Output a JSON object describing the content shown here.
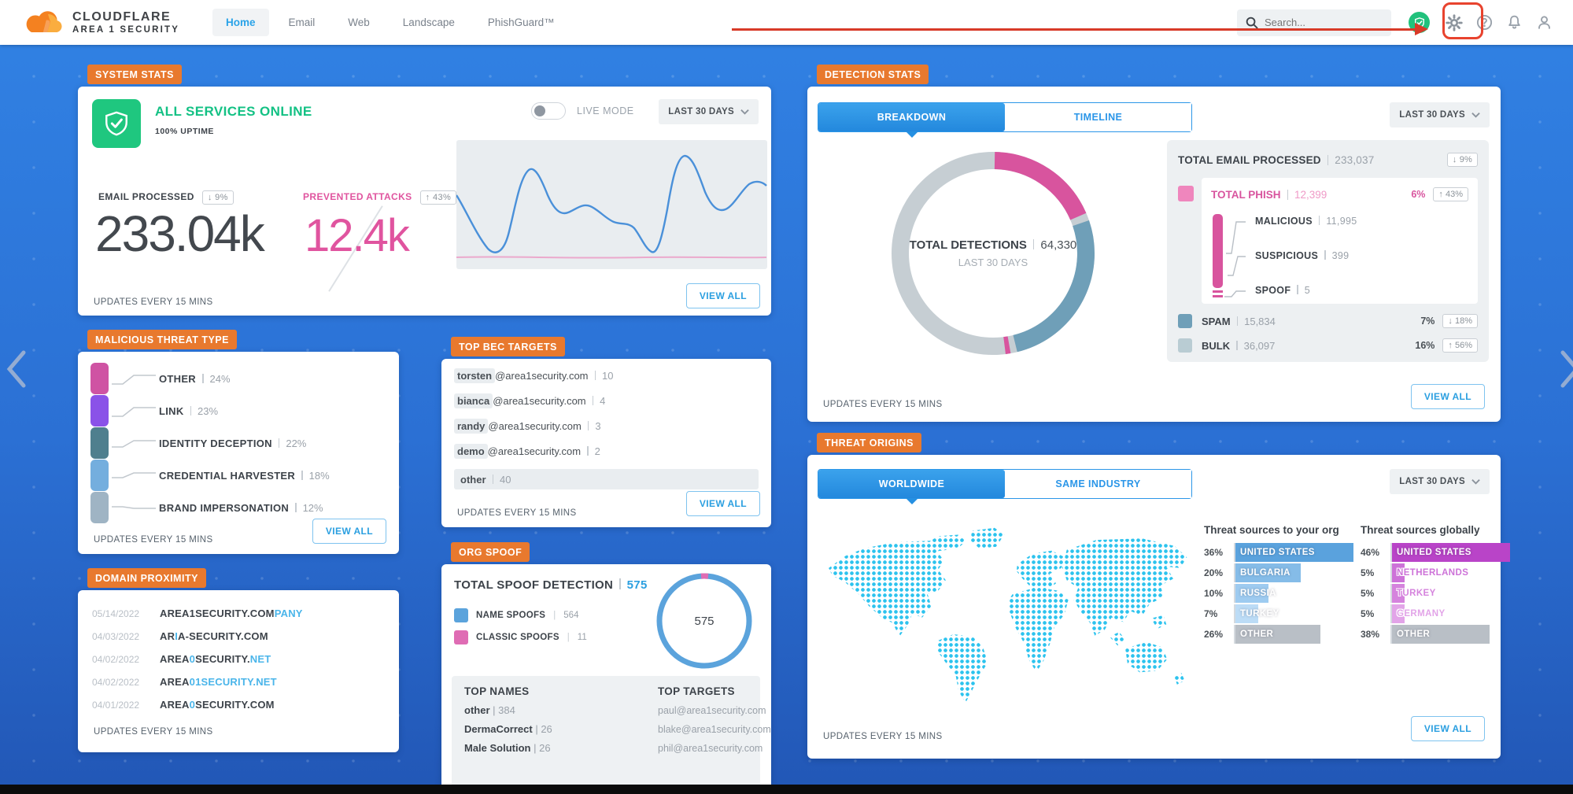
{
  "topbar": {
    "brand": {
      "name": "CLOUDFLARE",
      "sub": "AREA 1 SECURITY"
    },
    "nav": [
      {
        "label": "Home"
      },
      {
        "label": "Email"
      },
      {
        "label": "Web"
      },
      {
        "label": "Landscape"
      },
      {
        "label": "PhishGuard™"
      }
    ],
    "search_placeholder": "Search..."
  },
  "colors": {
    "accent_blue": "#2b9fe0",
    "badge_orange": "#e8792e",
    "green": "#1fc77f",
    "pink": "#e0549f",
    "page_blue": "#2b70d4"
  },
  "system_stats": {
    "badge": "SYSTEM STATS",
    "status": "ALL SERVICES ONLINE",
    "uptime": "100% UPTIME",
    "live_mode_label": "LIVE MODE",
    "range": "LAST 30 DAYS",
    "email_processed": {
      "label": "EMAIL PROCESSED",
      "delta": "↓ 9%",
      "value": "233.04k"
    },
    "prevented_attacks": {
      "label": "PREVENTED ATTACKS",
      "delta": "↑ 43%",
      "value": "12.4k"
    },
    "updates": "UPDATES EVERY 15 MINS",
    "view_all": "VIEW ALL"
  },
  "threat_types": {
    "badge": "MALICIOUS THREAT TYPE",
    "items": [
      {
        "label": "OTHER",
        "pct": "24%",
        "color": "#cf53a3"
      },
      {
        "label": "LINK",
        "pct": "23%",
        "color": "#8a52e8"
      },
      {
        "label": "IDENTITY DECEPTION",
        "pct": "22%",
        "color": "#4f7f8e"
      },
      {
        "label": "CREDENTIAL HARVESTER",
        "pct": "18%",
        "color": "#74aede"
      },
      {
        "label": "BRAND IMPERSONATION",
        "pct": "12%",
        "color": "#9fb4c4"
      }
    ],
    "updates": "UPDATES EVERY 15 MINS",
    "view_all": "VIEW ALL"
  },
  "domain_proximity": {
    "badge": "DOMAIN PROXIMITY",
    "rows": [
      {
        "date": "05/14/2022",
        "p1": "AREA1SECURITY.COM",
        "h1": "PANY",
        "p2": "",
        "h2": ""
      },
      {
        "date": "04/03/2022",
        "p1": "AR",
        "h1": "I",
        "p2": "A-SECURITY.COM",
        "h2": ""
      },
      {
        "date": "04/02/2022",
        "p1": "AREA",
        "h1": "0",
        "p2": "SECURITY.",
        "h2": "NET"
      },
      {
        "date": "04/02/2022",
        "p1": "AREA",
        "h1": "01SECURITY.NET",
        "p2": "",
        "h2": ""
      },
      {
        "date": "04/01/2022",
        "p1": "AREA",
        "h1": "0",
        "p2": "SECURITY.COM",
        "h2": ""
      }
    ],
    "updates": "UPDATES EVERY 15 MINS"
  },
  "bec_targets": {
    "badge": "TOP BEC TARGETS",
    "rows": [
      {
        "user": "torsten",
        "rest": "@area1security.com",
        "count": "10"
      },
      {
        "user": "bianca",
        "rest": "@area1security.com",
        "count": "4"
      },
      {
        "user": "randy",
        "rest": "@area1security.com",
        "count": "3"
      },
      {
        "user": "demo",
        "rest": "@area1security.com",
        "count": "2"
      }
    ],
    "other_label": "other",
    "other_count": "40",
    "updates": "UPDATES EVERY 15 MINS",
    "view_all": "VIEW ALL"
  },
  "org_spoof": {
    "badge": "ORG SPOOF",
    "title": "TOTAL SPOOF DETECTION",
    "total": "575",
    "legend": [
      {
        "label": "NAME SPOOFS",
        "value": "564",
        "color": "#5ba3dc"
      },
      {
        "label": "CLASSIC SPOOFS",
        "value": "11",
        "color": "#df6cb4"
      }
    ],
    "donut_center": "575",
    "top_names_title": "TOP NAMES",
    "top_names": [
      {
        "name": "other",
        "count": "384"
      },
      {
        "name": "DermaCorrect",
        "count": "26"
      },
      {
        "name": "Male Solution",
        "count": "26"
      }
    ],
    "top_targets_title": "TOP TARGETS",
    "top_targets": [
      "paul@area1security.com",
      "blake@area1security.com",
      "phil@area1security.com"
    ]
  },
  "detection_stats": {
    "badge": "DETECTION STATS",
    "tabs": [
      "BREAKDOWN",
      "TIMELINE"
    ],
    "range": "LAST 30 DAYS",
    "donut": {
      "center_label": "TOTAL DETECTIONS",
      "center_value": "64,330",
      "center_sub": "LAST 30 DAYS",
      "segments": [
        {
          "name": "phish",
          "pct": 18.6,
          "color": "#d8549e"
        },
        {
          "name": "spam+bulk",
          "pct": 27,
          "color": "#6f9fb8"
        },
        {
          "name": "rest",
          "pct": 54.4,
          "color": "#c6ced3"
        }
      ]
    },
    "total_email": {
      "label": "TOTAL EMAIL PROCESSED",
      "value": "233,037",
      "delta": "↓ 9%"
    },
    "phish": {
      "label": "TOTAL PHISH",
      "value": "12,399",
      "pct": "6%",
      "delta": "↑ 43%",
      "children": [
        {
          "label": "MALICIOUS",
          "value": "11,995"
        },
        {
          "label": "SUSPICIOUS",
          "value": "399"
        },
        {
          "label": "SPOOF",
          "value": "5"
        }
      ]
    },
    "spam": {
      "label": "SPAM",
      "value": "15,834",
      "pct": "7%",
      "delta": "↓ 18%",
      "color": "#6f9fb8"
    },
    "bulk": {
      "label": "BULK",
      "value": "36,097",
      "pct": "16%",
      "delta": "↑ 56%",
      "color": "#b9ccd3"
    },
    "updates": "UPDATES EVERY 15 MINS",
    "view_all": "VIEW ALL"
  },
  "threat_origins": {
    "badge": "THREAT ORIGINS",
    "tabs": [
      "WORLDWIDE",
      "SAME INDUSTRY"
    ],
    "range": "LAST 30 DAYS",
    "org_title": "Threat sources to your org",
    "org": [
      {
        "pct": "36%",
        "country": "UNITED STATES",
        "color": "#5aa2dd"
      },
      {
        "pct": "20%",
        "country": "BULGARIA",
        "color": "#85bce8"
      },
      {
        "pct": "10%",
        "country": "RUSSIA",
        "color": "#9ecbf0"
      },
      {
        "pct": "7%",
        "country": "TURKEY",
        "color": "#bcdcf6"
      },
      {
        "pct": "26%",
        "country": "OTHER",
        "color": "#b9bfc6"
      }
    ],
    "global_title": "Threat sources globally",
    "global": [
      {
        "pct": "46%",
        "country": "UNITED STATES",
        "color": "#b944c8"
      },
      {
        "pct": "5%",
        "country": "NETHERLANDS",
        "color": "#cd72d8"
      },
      {
        "pct": "5%",
        "country": "TURKEY",
        "color": "#d583dd"
      },
      {
        "pct": "5%",
        "country": "GERMANY",
        "color": "#e2a4e8"
      },
      {
        "pct": "38%",
        "country": "OTHER",
        "color": "#b9bfc6"
      }
    ],
    "updates": "UPDATES EVERY 15 MINS",
    "view_all": "VIEW ALL"
  }
}
